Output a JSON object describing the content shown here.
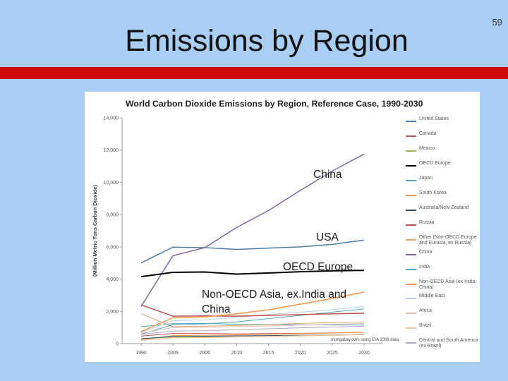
{
  "slide": {
    "title": "Emissions by Region",
    "page_number": "59"
  },
  "chart_data": {
    "type": "line",
    "title": "World Carbon Dioxide Emissions by Region, Reference Case, 1990-2030",
    "ylabel": "(Million Metric Tons Carbon Dioxide)",
    "xlabel": "",
    "x": [
      "1990",
      "2005",
      "2006",
      "2010",
      "2015",
      "2020",
      "2025",
      "2030"
    ],
    "ylim": [
      0,
      14000
    ],
    "yticks": [
      0,
      2000,
      4000,
      6000,
      8000,
      10000,
      12000,
      14000
    ],
    "ytick_labels": [
      "0",
      "2,000",
      "4,000",
      "6,000",
      "8,000",
      "10,000",
      "12,000",
      "14,000"
    ],
    "grid": false,
    "source_note": "mongabay.com using EIA 2009 data",
    "series": [
      {
        "name": "United States",
        "color": "#4a7ea8",
        "width": 1.5,
        "values": [
          5000,
          5980,
          5950,
          5840,
          5920,
          6000,
          6150,
          6420
        ]
      },
      {
        "name": "Canada",
        "color": "#c0504d",
        "width": 1,
        "values": [
          470,
          630,
          620,
          600,
          620,
          640,
          660,
          700
        ]
      },
      {
        "name": "Mexico",
        "color": "#9bbb59",
        "width": 1,
        "values": [
          300,
          400,
          410,
          420,
          450,
          480,
          520,
          560
        ]
      },
      {
        "name": "OECD Europe",
        "color": "#000000",
        "width": 2,
        "values": [
          4150,
          4420,
          4440,
          4310,
          4380,
          4460,
          4510,
          4540
        ]
      },
      {
        "name": "Japan",
        "color": "#4bacc6",
        "width": 1,
        "values": [
          1050,
          1240,
          1250,
          1200,
          1190,
          1170,
          1160,
          1150
        ]
      },
      {
        "name": "South Korea",
        "color": "#f79646",
        "width": 1,
        "values": [
          240,
          500,
          510,
          540,
          580,
          620,
          650,
          700
        ]
      },
      {
        "name": "Australia/New Zealand",
        "color": "#2c4d75",
        "width": 1,
        "values": [
          300,
          450,
          460,
          480,
          500,
          520,
          540,
          560
        ]
      },
      {
        "name": "Russia",
        "color": "#c0504d",
        "width": 1.5,
        "values": [
          2400,
          1700,
          1720,
          1700,
          1750,
          1800,
          1850,
          1880
        ]
      },
      {
        "name": "Other (Non-OECD Europe and Eurasia, ex Russia)",
        "color": "#d8a867",
        "width": 1,
        "values": [
          1850,
          1050,
          1080,
          1120,
          1180,
          1250,
          1300,
          1350
        ]
      },
      {
        "name": "China",
        "color": "#8064a2",
        "width": 1.5,
        "values": [
          2300,
          5450,
          5950,
          7200,
          8250,
          9500,
          10700,
          11750
        ]
      },
      {
        "name": "India",
        "color": "#4bacc6",
        "width": 1,
        "values": [
          580,
          1180,
          1220,
          1350,
          1550,
          1750,
          1950,
          2150
        ]
      },
      {
        "name": "Non-OECD Asia (ex India, China)",
        "color": "#f79646",
        "width": 1.5,
        "values": [
          750,
          1600,
          1650,
          1850,
          2100,
          2450,
          2800,
          3200
        ]
      },
      {
        "name": "Middle East",
        "color": "#b9cde5",
        "width": 1,
        "values": [
          700,
          1420,
          1480,
          1620,
          1800,
          1950,
          2100,
          2300
        ]
      },
      {
        "name": "Africa",
        "color": "#e6b9b8",
        "width": 1,
        "values": [
          650,
          1000,
          1020,
          1050,
          1100,
          1150,
          1200,
          1250
        ]
      },
      {
        "name": "Brazil",
        "color": "#fac090",
        "width": 1,
        "values": [
          200,
          360,
          370,
          410,
          450,
          490,
          530,
          560
        ]
      },
      {
        "name": "Central and South America (ex Brazil)",
        "color": "#b3a2c7",
        "width": 1,
        "values": [
          580,
          780,
          800,
          860,
          920,
          980,
          1030,
          1080
        ]
      }
    ],
    "annotations": [
      {
        "text": "China"
      },
      {
        "text": "USA"
      },
      {
        "text": "OECD Europe"
      },
      {
        "text": "Non-OECD Asia, ex.India and China"
      }
    ]
  }
}
